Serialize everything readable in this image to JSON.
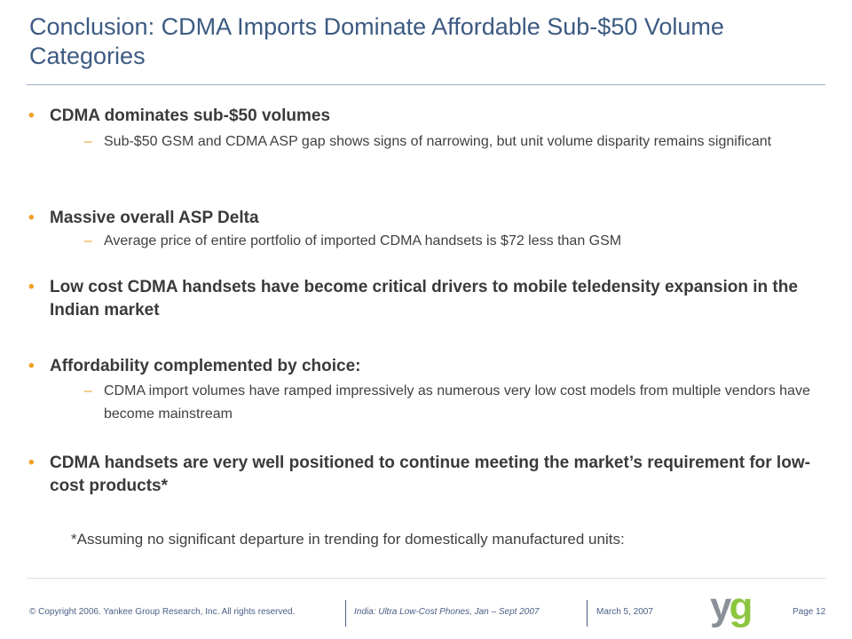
{
  "header": {
    "title": "Conclusion: CDMA Imports Dominate Affordable Sub-$50 Volume Categories"
  },
  "bullets": [
    {
      "text": "CDMA dominates sub-$50 volumes",
      "subitems": [
        "Sub-$50 GSM and CDMA ASP gap shows signs of narrowing, but unit volume disparity remains significant"
      ]
    },
    {
      "text": "Massive overall ASP Delta",
      "subitems": [
        "Average price of entire portfolio of imported CDMA handsets is $72 less than GSM"
      ]
    },
    {
      "text": "Low cost CDMA handsets have become critical drivers to mobile teledensity expansion in the Indian market",
      "subitems": []
    },
    {
      "text": "Affordability complemented by choice:",
      "subitems": [
        "CDMA import volumes have ramped impressively as numerous very low cost models from multiple vendors have become mainstream"
      ]
    },
    {
      "text": "CDMA handsets are very well positioned to continue meeting the market’s requirement for low-cost products*",
      "subitems": []
    }
  ],
  "footnote": "*Assuming no significant departure in trending for domestically manufactured units:",
  "footer": {
    "copyright": "© Copyright 2006. Yankee Group Research, Inc. All rights reserved.",
    "report": "India: Ultra Low-Cost Phones, Jan – Sept 2007",
    "date": "March 5, 2007",
    "logo_y": "y",
    "logo_g": "g",
    "page": "Page 12"
  }
}
